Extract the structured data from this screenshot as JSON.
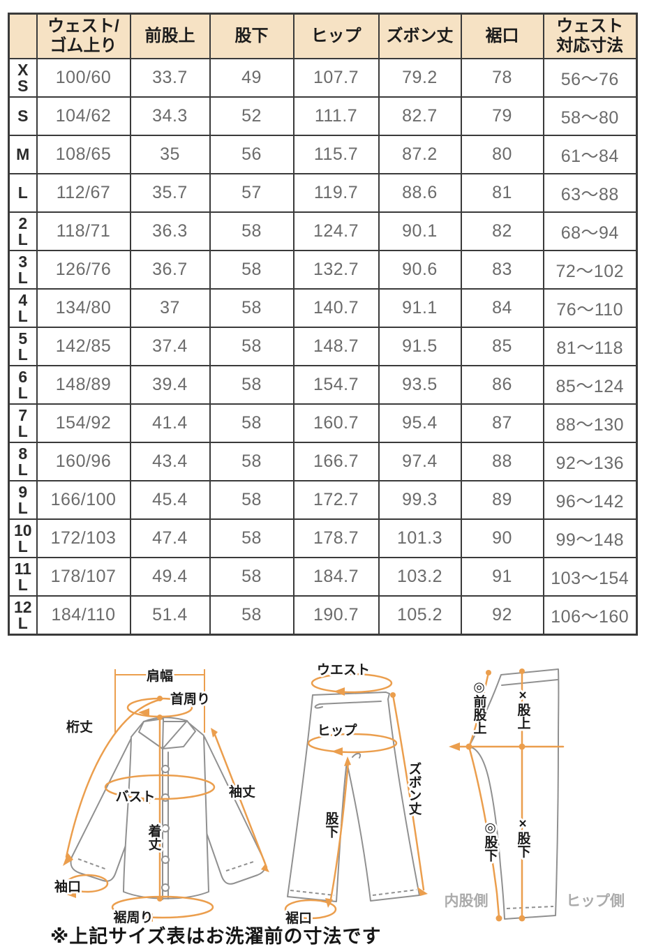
{
  "table": {
    "headers": [
      "",
      "ウェスト/\nゴム上り",
      "前股上",
      "股下",
      "ヒップ",
      "ズボン丈",
      "裾口",
      "ウェスト\n対応寸法"
    ],
    "rows": [
      {
        "size": "XS",
        "values": [
          "100/60",
          "33.7",
          "49",
          "107.7",
          "79.2",
          "78",
          "56〜76"
        ]
      },
      {
        "size": "S",
        "values": [
          "104/62",
          "34.3",
          "52",
          "111.7",
          "82.7",
          "79",
          "58〜80"
        ]
      },
      {
        "size": "M",
        "values": [
          "108/65",
          "35",
          "56",
          "115.7",
          "87.2",
          "80",
          "61〜84"
        ]
      },
      {
        "size": "L",
        "values": [
          "112/67",
          "35.7",
          "57",
          "119.7",
          "88.6",
          "81",
          "63〜88"
        ]
      },
      {
        "size": "2L",
        "values": [
          "118/71",
          "36.3",
          "58",
          "124.7",
          "90.1",
          "82",
          "68〜94"
        ]
      },
      {
        "size": "3L",
        "values": [
          "126/76",
          "36.7",
          "58",
          "132.7",
          "90.6",
          "83",
          "72〜102"
        ]
      },
      {
        "size": "4L",
        "values": [
          "134/80",
          "37",
          "58",
          "140.7",
          "91.1",
          "84",
          "76〜110"
        ]
      },
      {
        "size": "5L",
        "values": [
          "142/85",
          "37.4",
          "58",
          "148.7",
          "91.5",
          "85",
          "81〜118"
        ]
      },
      {
        "size": "6L",
        "values": [
          "148/89",
          "39.4",
          "58",
          "154.7",
          "93.5",
          "86",
          "85〜124"
        ]
      },
      {
        "size": "7L",
        "values": [
          "154/92",
          "41.4",
          "58",
          "160.7",
          "95.4",
          "87",
          "88〜130"
        ]
      },
      {
        "size": "8L",
        "values": [
          "160/96",
          "43.4",
          "58",
          "166.7",
          "97.4",
          "88",
          "92〜136"
        ]
      },
      {
        "size": "9L",
        "values": [
          "166/100",
          "45.4",
          "58",
          "172.7",
          "99.3",
          "89",
          "96〜142"
        ]
      },
      {
        "size": "10L",
        "values": [
          "172/103",
          "47.4",
          "58",
          "178.7",
          "101.3",
          "90",
          "99〜148"
        ]
      },
      {
        "size": "11L",
        "values": [
          "178/107",
          "49.4",
          "58",
          "184.7",
          "103.2",
          "91",
          "103〜154"
        ]
      },
      {
        "size": "12L",
        "values": [
          "184/110",
          "51.4",
          "58",
          "190.7",
          "105.2",
          "92",
          "106〜160"
        ]
      }
    ]
  },
  "diagrams": {
    "shirt": {
      "labels": {
        "shoulder_width": "肩幅",
        "neck": "首周り",
        "yuki": "桁丈",
        "bust": "バスト",
        "sleeve_length": "袖丈",
        "body_length": "着丈",
        "cuff": "袖口",
        "hem_around": "裾周り"
      }
    },
    "pants_front": {
      "labels": {
        "waist": "ウエスト",
        "hip": "ヒップ",
        "pants_length": "ズボン丈",
        "inseam": "股下",
        "hem": "裾口"
      }
    },
    "pants_side": {
      "labels": {
        "front_rise": "◎前股上",
        "rise": "×股上",
        "inseam_front": "◎股下",
        "inseam_x": "×股下",
        "inner_side": "内股側",
        "hip_side": "ヒップ側"
      }
    }
  },
  "footer": {
    "note": "※上記サイズ表はお洗濯前の寸法です"
  },
  "colors": {
    "header_bg": "#f6e2c4",
    "border": "#3a3a3a",
    "value_text": "#6b6b6b",
    "accent_orange": "#eb9e4d",
    "garment_gray": "#909090"
  }
}
